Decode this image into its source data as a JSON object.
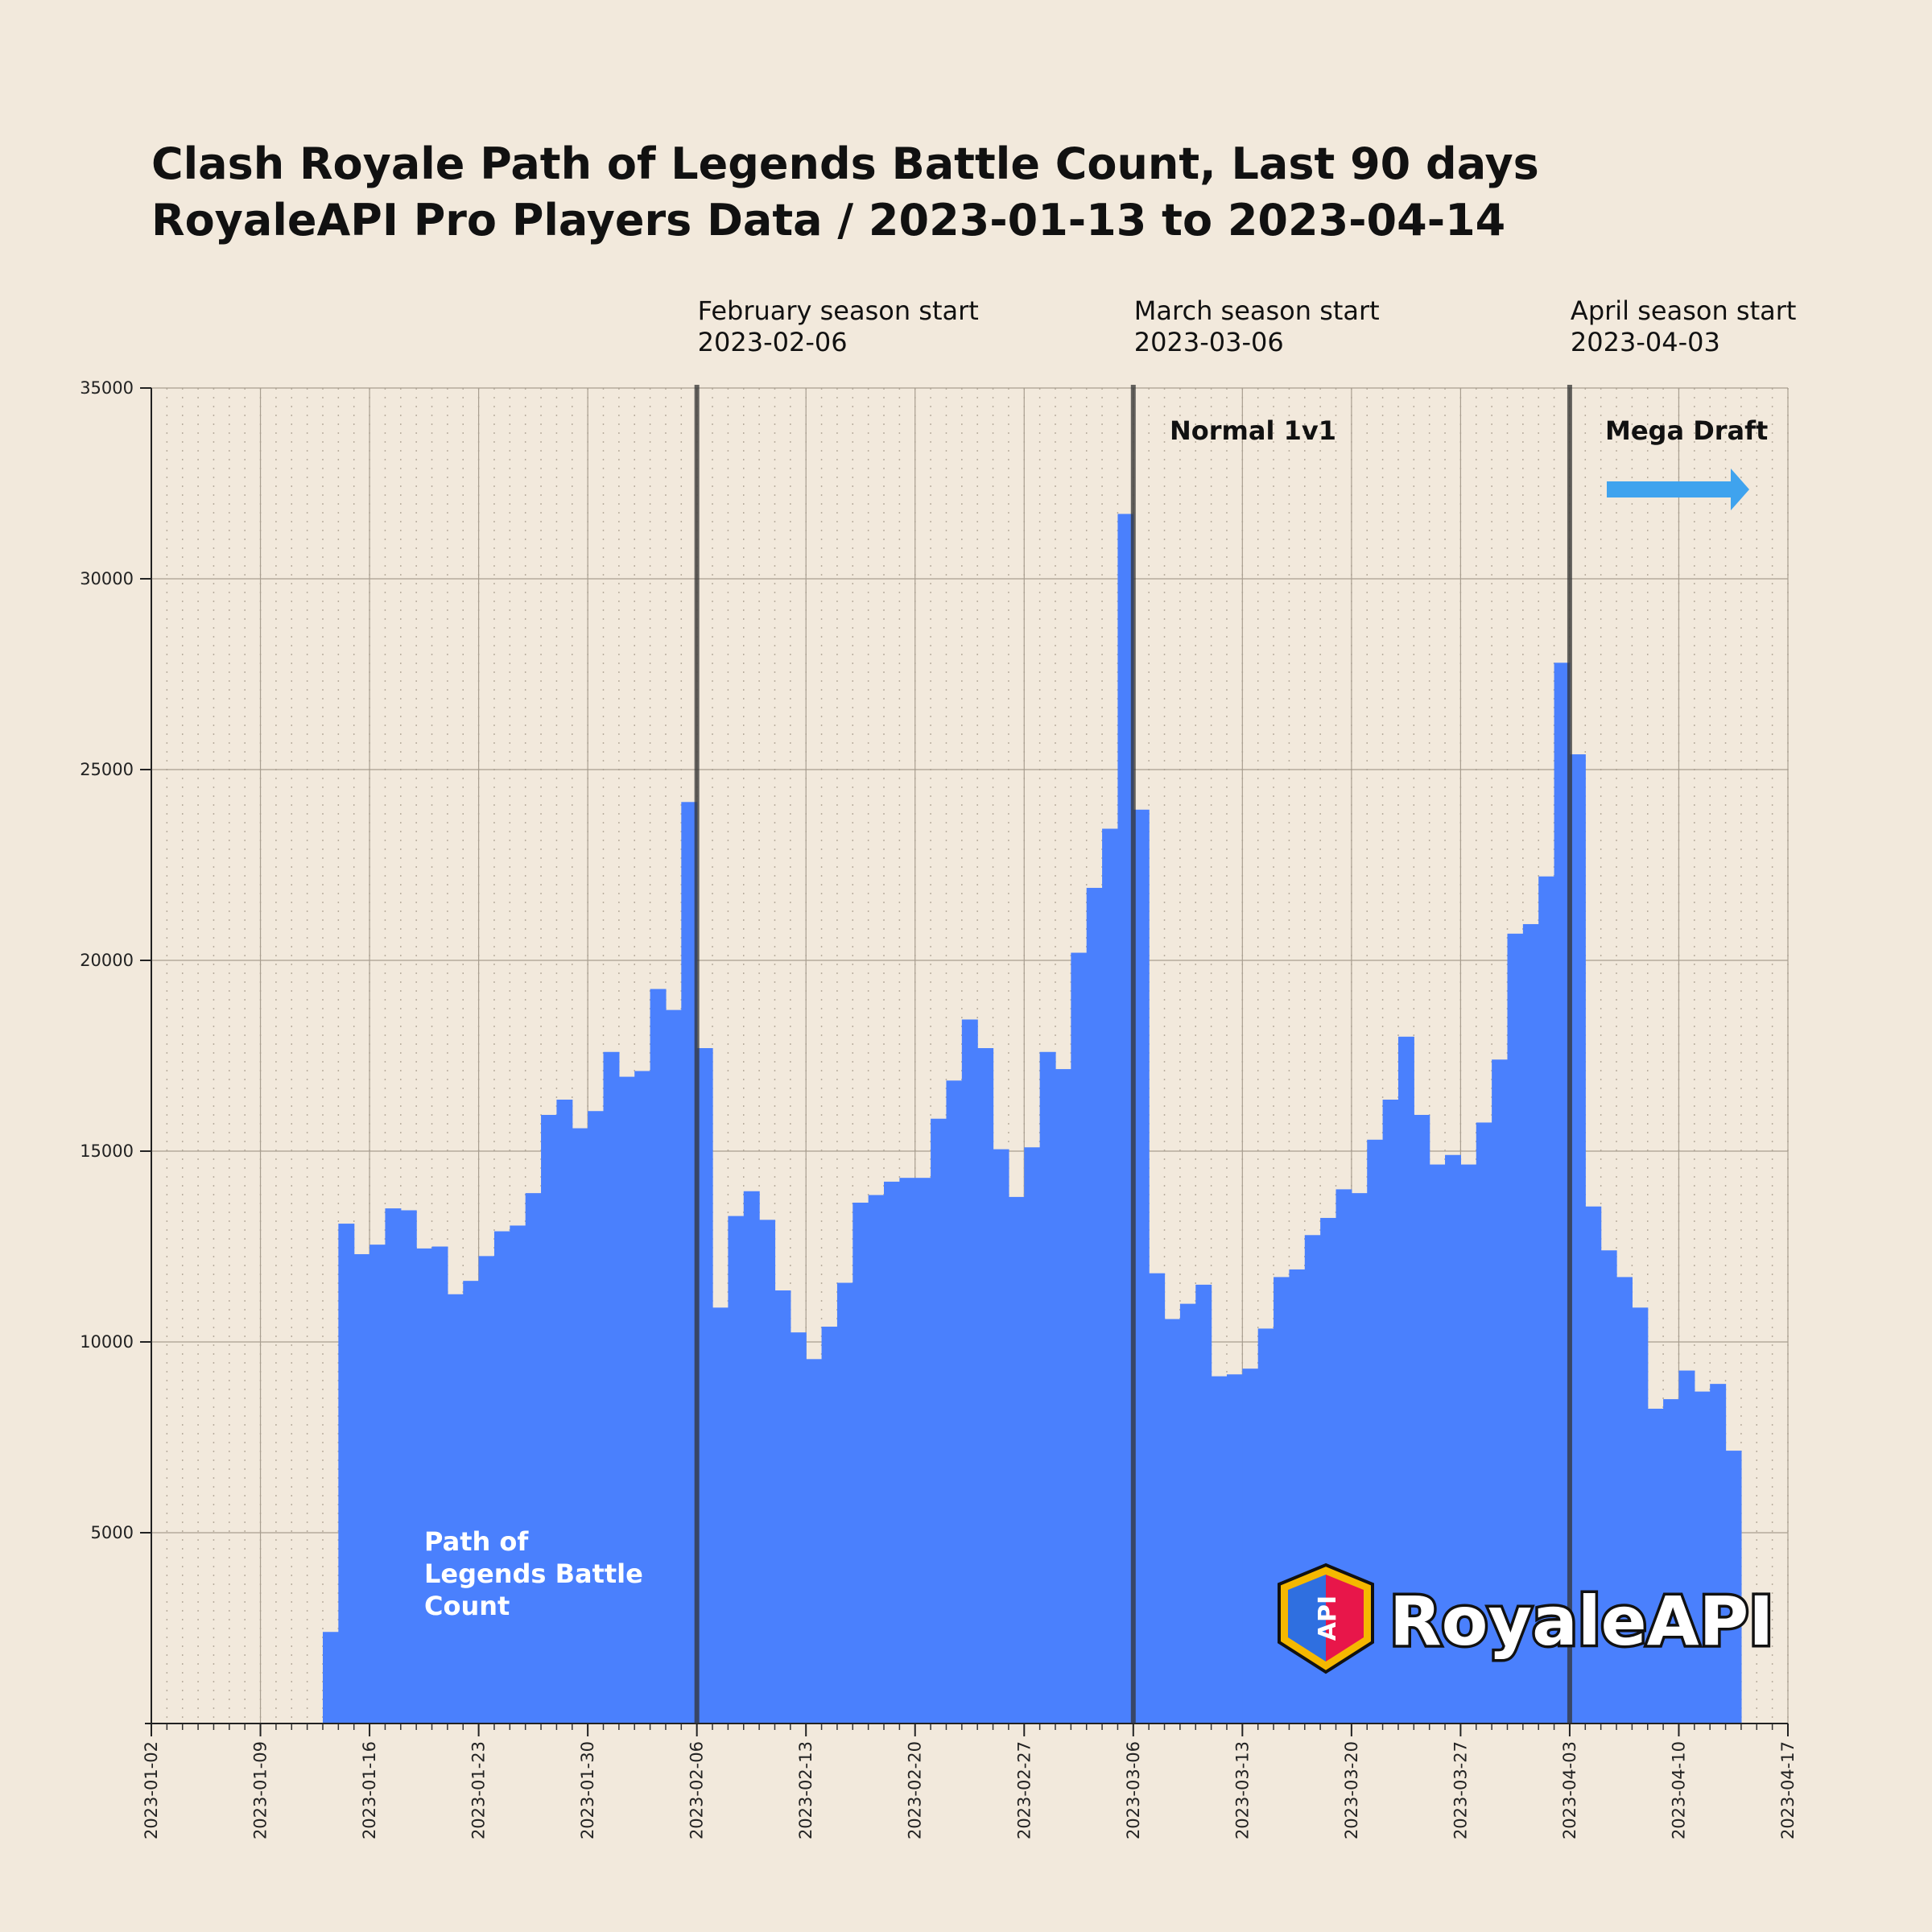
{
  "chart_data": {
    "type": "bar",
    "title": "Clash Royale Path of Legends Battle Count, Last 90 days",
    "subtitle": "RoyaleAPI Pro Players Data / 2023-01-13 to 2023-04-14",
    "x": [
      "2023-01-13",
      "2023-01-14",
      "2023-01-15",
      "2023-01-16",
      "2023-01-17",
      "2023-01-18",
      "2023-01-19",
      "2023-01-20",
      "2023-01-21",
      "2023-01-22",
      "2023-01-23",
      "2023-01-24",
      "2023-01-25",
      "2023-01-26",
      "2023-01-27",
      "2023-01-28",
      "2023-01-29",
      "2023-01-30",
      "2023-01-31",
      "2023-02-01",
      "2023-02-02",
      "2023-02-03",
      "2023-02-04",
      "2023-02-05",
      "2023-02-06",
      "2023-02-07",
      "2023-02-08",
      "2023-02-09",
      "2023-02-10",
      "2023-02-11",
      "2023-02-12",
      "2023-02-13",
      "2023-02-14",
      "2023-02-15",
      "2023-02-16",
      "2023-02-17",
      "2023-02-18",
      "2023-02-19",
      "2023-02-20",
      "2023-02-21",
      "2023-02-22",
      "2023-02-23",
      "2023-02-24",
      "2023-02-25",
      "2023-02-26",
      "2023-02-27",
      "2023-02-28",
      "2023-03-01",
      "2023-03-02",
      "2023-03-03",
      "2023-03-04",
      "2023-03-05",
      "2023-03-06",
      "2023-03-07",
      "2023-03-08",
      "2023-03-09",
      "2023-03-10",
      "2023-03-11",
      "2023-03-12",
      "2023-03-13",
      "2023-03-14",
      "2023-03-15",
      "2023-03-16",
      "2023-03-17",
      "2023-03-18",
      "2023-03-19",
      "2023-03-20",
      "2023-03-21",
      "2023-03-22",
      "2023-03-23",
      "2023-03-24",
      "2023-03-25",
      "2023-03-26",
      "2023-03-27",
      "2023-03-28",
      "2023-03-29",
      "2023-03-30",
      "2023-03-31",
      "2023-04-01",
      "2023-04-02",
      "2023-04-03",
      "2023-04-04",
      "2023-04-05",
      "2023-04-06",
      "2023-04-07",
      "2023-04-08",
      "2023-04-09",
      "2023-04-10",
      "2023-04-11",
      "2023-04-12",
      "2023-04-13"
    ],
    "series": [
      {
        "name": "Path of Legends Battle Count",
        "color": "#4a80fd",
        "values": [
          2400,
          13100,
          12300,
          12550,
          13500,
          13450,
          12450,
          12500,
          11250,
          11600,
          12250,
          12900,
          13050,
          13900,
          15950,
          16350,
          15600,
          16050,
          17600,
          16950,
          17100,
          19250,
          18700,
          24150,
          17700,
          10900,
          13300,
          13950,
          13200,
          11350,
          10250,
          9550,
          10400,
          11550,
          13650,
          13850,
          14200,
          14300,
          14300,
          15850,
          16850,
          18450,
          17700,
          15050,
          13800,
          15100,
          17600,
          17150,
          20200,
          21900,
          23450,
          31700,
          23950,
          11800,
          10600,
          11000,
          11500,
          9100,
          9150,
          9300,
          10350,
          11700,
          11900,
          12800,
          13250,
          14000,
          13900,
          15300,
          16350,
          18000,
          15950,
          14650,
          14900,
          14650,
          15750,
          17400,
          20700,
          20950,
          22200,
          27800,
          25400,
          13550,
          12400,
          11700,
          10900,
          8250,
          8500,
          9250,
          8700,
          8900,
          7150
        ]
      }
    ],
    "xlim": [
      "2023-01-02",
      "2023-04-17"
    ],
    "xticks": [
      "2023-01-02",
      "2023-01-09",
      "2023-01-16",
      "2023-01-23",
      "2023-01-30",
      "2023-02-06",
      "2023-02-13",
      "2023-02-20",
      "2023-02-27",
      "2023-03-06",
      "2023-03-13",
      "2023-03-20",
      "2023-03-27",
      "2023-04-03",
      "2023-04-10",
      "2023-04-17"
    ],
    "ylim": [
      0,
      35000
    ],
    "yticks": [
      5000,
      10000,
      15000,
      20000,
      25000,
      30000,
      35000
    ],
    "grid": true,
    "events": [
      {
        "name": "February season start",
        "x": "2023-02-06"
      },
      {
        "name": "March season start",
        "x": "2023-03-06"
      },
      {
        "name": "April season start",
        "x": "2023-04-03"
      }
    ],
    "annotations": [
      "Normal 1v1",
      "Mega Draft"
    ]
  },
  "logo": {
    "badge": "API",
    "name": "RoyaleAPI"
  }
}
